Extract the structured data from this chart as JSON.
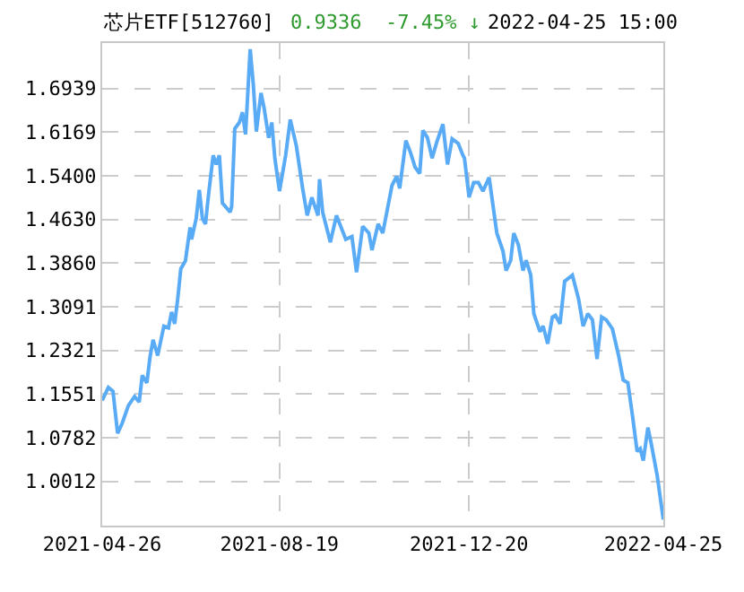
{
  "chart_data": {
    "type": "line",
    "title": "芯片ETF[512760]",
    "subtitle": "0.9336  -7.45% ↓",
    "annotations": [
      "2022-04-25 15:00"
    ],
    "x": [
      "2021-04-26",
      "2021-04-30",
      "2021-05-03",
      "2021-05-06",
      "2021-05-09",
      "2021-05-13",
      "2021-05-17",
      "2021-05-20",
      "2021-05-22",
      "2021-05-25",
      "2021-05-27",
      "2021-05-29",
      "2021-06-01",
      "2021-06-05",
      "2021-06-08",
      "2021-06-10",
      "2021-06-12",
      "2021-06-14",
      "2021-06-16",
      "2021-06-19",
      "2021-06-22",
      "2021-06-23",
      "2021-06-26",
      "2021-06-28",
      "2021-06-30",
      "2021-07-02",
      "2021-07-04",
      "2021-07-07",
      "2021-07-09",
      "2021-07-11",
      "2021-07-13",
      "2021-07-18",
      "2021-07-19",
      "2021-07-21",
      "2021-07-24",
      "2021-07-26",
      "2021-07-28",
      "2021-07-31",
      "2021-08-02",
      "2021-08-04",
      "2021-08-07",
      "2021-08-09",
      "2021-08-12",
      "2021-08-14",
      "2021-08-16",
      "2021-08-19",
      "2021-08-23",
      "2021-08-26",
      "2021-08-30",
      "2021-09-03",
      "2021-09-06",
      "2021-09-09",
      "2021-09-13",
      "2021-09-14",
      "2021-09-16",
      "2021-09-21",
      "2021-09-25",
      "2021-10-01",
      "2021-10-05",
      "2021-10-08",
      "2021-10-12",
      "2021-10-16",
      "2021-10-18",
      "2021-10-22",
      "2021-10-25",
      "2021-10-31",
      "2021-11-03",
      "2021-11-05",
      "2021-11-09",
      "2021-11-12",
      "2021-11-15",
      "2021-11-18",
      "2021-11-20",
      "2021-11-23",
      "2021-11-26",
      "2021-11-29",
      "2021-12-03",
      "2021-12-06",
      "2021-12-09",
      "2021-12-13",
      "2021-12-16",
      "2021-12-17",
      "2021-12-20",
      "2021-12-23",
      "2021-12-26",
      "2021-12-29",
      "2022-01-02",
      "2022-01-07",
      "2022-01-11",
      "2022-01-13",
      "2022-01-16",
      "2022-01-18",
      "2022-01-21",
      "2022-01-24",
      "2022-01-26",
      "2022-01-29",
      "2022-01-31",
      "2022-02-04",
      "2022-02-06",
      "2022-02-09",
      "2022-02-12",
      "2022-02-14",
      "2022-02-17",
      "2022-02-20",
      "2022-02-25",
      "2022-03-01",
      "2022-03-04",
      "2022-03-07",
      "2022-03-10",
      "2022-03-13",
      "2022-03-16",
      "2022-03-19",
      "2022-03-23",
      "2022-03-27",
      "2022-03-30",
      "2022-04-02",
      "2022-04-05",
      "2022-04-08",
      "2022-04-10",
      "2022-04-12",
      "2022-04-15",
      "2022-04-17",
      "2022-04-21",
      "2022-04-25"
    ],
    "series": [
      {
        "color": "#5aabf5",
        "values": [
          1.144,
          1.167,
          1.16,
          1.086,
          1.104,
          1.135,
          1.151,
          1.141,
          1.188,
          1.175,
          1.22,
          1.251,
          1.223,
          1.275,
          1.272,
          1.3,
          1.279,
          1.323,
          1.376,
          1.39,
          1.449,
          1.428,
          1.465,
          1.515,
          1.465,
          1.455,
          1.507,
          1.576,
          1.56,
          1.576,
          1.492,
          1.476,
          1.486,
          1.623,
          1.634,
          1.652,
          1.613,
          1.763,
          1.702,
          1.618,
          1.686,
          1.66,
          1.607,
          1.634,
          1.571,
          1.513,
          1.576,
          1.639,
          1.592,
          1.518,
          1.47,
          1.502,
          1.47,
          1.534,
          1.476,
          1.423,
          1.47,
          1.428,
          1.433,
          1.37,
          1.451,
          1.439,
          1.409,
          1.455,
          1.439,
          1.523,
          1.539,
          1.518,
          1.602,
          1.581,
          1.555,
          1.544,
          1.62,
          1.607,
          1.571,
          1.599,
          1.631,
          1.56,
          1.605,
          1.597,
          1.576,
          1.571,
          1.502,
          1.528,
          1.528,
          1.513,
          1.537,
          1.439,
          1.407,
          1.373,
          1.391,
          1.439,
          1.418,
          1.373,
          1.391,
          1.365,
          1.297,
          1.265,
          1.275,
          1.244,
          1.291,
          1.294,
          1.279,
          1.354,
          1.365,
          1.323,
          1.275,
          1.297,
          1.286,
          1.217,
          1.291,
          1.286,
          1.27,
          1.223,
          1.18,
          1.175,
          1.117,
          1.054,
          1.059,
          1.038,
          1.096,
          1.07,
          1.012,
          0.934
        ]
      }
    ],
    "xlim": [
      "2021-04-26",
      "2022-04-25"
    ],
    "xticks": [
      "2021-04-26",
      "2021-08-19",
      "2021-12-20",
      "2022-04-25"
    ],
    "ylim": [
      0.9233,
      1.774
    ],
    "yticks": [
      1.0012,
      1.0782,
      1.1551,
      1.2321,
      1.3091,
      {
        "value": 1.386,
        "label": "1.3860"
      },
      {
        "value": 1.463,
        "label": "1.4630"
      },
      {
        "value": 1.54,
        "label": "1.5400"
      },
      1.6169,
      1.6939
    ],
    "grid": true,
    "legend": false,
    "marker": "none",
    "line_style": "solid"
  }
}
